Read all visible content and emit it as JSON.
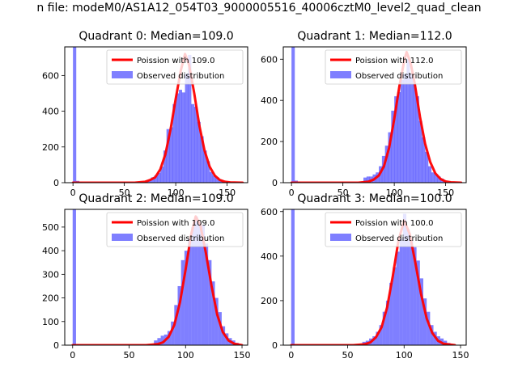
{
  "figure": {
    "suptitle": "n file: modeM0/AS1A12_054T03_9000005516_40006cztM0_level2_quad_clean"
  },
  "chart_data": [
    {
      "type": "bar",
      "title": "Quadrant 0: Median=109.0",
      "xlabel": "",
      "ylabel": "",
      "xlim": [
        -8,
        170
      ],
      "ylim": [
        0,
        760
      ],
      "xticks": [
        0,
        50,
        100,
        150
      ],
      "yticks": [
        0,
        200,
        400,
        600
      ],
      "legend_position": "upper right",
      "legend": [
        "Poission with 109.0",
        "Observed distribution"
      ],
      "series": [
        {
          "name": "Observed distribution",
          "color": "#0000ff",
          "alpha": 0.5,
          "bin_width": 3.2,
          "x": [
            0,
            3,
            6,
            9,
            12,
            15,
            70,
            73,
            76,
            79,
            82,
            85,
            88,
            91,
            94,
            97,
            100,
            103,
            106,
            109,
            112,
            115,
            118,
            121,
            124,
            127,
            130,
            133,
            136,
            139,
            142,
            145,
            148
          ],
          "values": [
            760,
            10,
            5,
            3,
            3,
            2,
            8,
            15,
            30,
            40,
            55,
            90,
            180,
            300,
            310,
            440,
            500,
            520,
            505,
            610,
            715,
            440,
            425,
            340,
            260,
            180,
            120,
            60,
            40,
            30,
            15,
            8,
            5
          ]
        },
        {
          "name": "Poission with 109.0",
          "color": "#ff0000",
          "line": true,
          "x": [
            0,
            60,
            70,
            75,
            80,
            85,
            90,
            95,
            100,
            105,
            109,
            113,
            118,
            123,
            128,
            133,
            138,
            143,
            148,
            153,
            165
          ],
          "values": [
            0,
            0,
            5,
            15,
            30,
            75,
            160,
            300,
            470,
            630,
            720,
            660,
            500,
            320,
            180,
            90,
            40,
            15,
            5,
            2,
            0
          ]
        }
      ]
    },
    {
      "type": "bar",
      "title": "Quadrant 1: Median=112.0",
      "xlabel": "",
      "ylabel": "",
      "xlim": [
        -8,
        170
      ],
      "ylim": [
        0,
        660
      ],
      "xticks": [
        0,
        50,
        100,
        150
      ],
      "yticks": [
        0,
        200,
        400,
        600
      ],
      "legend_position": "upper right",
      "legend": [
        "Poission with 112.0",
        "Observed distribution"
      ],
      "series": [
        {
          "name": "Observed distribution",
          "color": "#0000ff",
          "alpha": 0.5,
          "bin_width": 3.2,
          "x": [
            0,
            3,
            6,
            9,
            12,
            15,
            70,
            73,
            76,
            79,
            82,
            85,
            88,
            91,
            94,
            97,
            100,
            103,
            106,
            109,
            112,
            115,
            118,
            121,
            124,
            127,
            130,
            133,
            136,
            139,
            142,
            145,
            148
          ],
          "values": [
            660,
            10,
            5,
            3,
            3,
            2,
            25,
            30,
            30,
            40,
            50,
            80,
            130,
            180,
            245,
            350,
            420,
            440,
            500,
            530,
            600,
            530,
            480,
            420,
            300,
            220,
            150,
            80,
            50,
            40,
            30,
            20,
            10
          ]
        },
        {
          "name": "Poission with 112.0",
          "color": "#ff0000",
          "line": true,
          "x": [
            0,
            65,
            75,
            80,
            85,
            90,
            95,
            100,
            105,
            110,
            112,
            116,
            120,
            125,
            130,
            135,
            140,
            145,
            150,
            155,
            165
          ],
          "values": [
            0,
            0,
            5,
            15,
            35,
            80,
            170,
            310,
            470,
            600,
            635,
            580,
            480,
            320,
            190,
            100,
            45,
            18,
            6,
            2,
            0
          ]
        }
      ]
    },
    {
      "type": "bar",
      "title": "Quadrant 2: Median=109.0",
      "xlabel": "",
      "ylabel": "",
      "xlim": [
        -7,
        155
      ],
      "ylim": [
        0,
        575
      ],
      "xticks": [
        0,
        50,
        100,
        150
      ],
      "yticks": [
        0,
        100,
        200,
        300,
        400,
        500
      ],
      "legend_position": "upper right",
      "legend": [
        "Poission with 109.0",
        "Observed distribution"
      ],
      "series": [
        {
          "name": "Observed distribution",
          "color": "#0000ff",
          "alpha": 0.5,
          "bin_width": 3.0,
          "x": [
            0,
            3,
            6,
            9,
            72,
            75,
            78,
            81,
            84,
            87,
            90,
            93,
            96,
            99,
            102,
            105,
            108,
            111,
            114,
            117,
            120,
            123,
            126,
            129,
            132,
            135,
            138,
            141,
            144
          ],
          "values": [
            575,
            4,
            3,
            2,
            20,
            30,
            40,
            45,
            60,
            100,
            170,
            250,
            360,
            400,
            450,
            500,
            545,
            520,
            510,
            430,
            360,
            270,
            200,
            140,
            80,
            50,
            30,
            20,
            10
          ]
        },
        {
          "name": "Poission with 109.0",
          "color": "#ff0000",
          "line": true,
          "x": [
            0,
            65,
            75,
            80,
            85,
            90,
            95,
            100,
            105,
            109,
            113,
            118,
            123,
            128,
            133,
            138,
            143,
            150
          ],
          "values": [
            0,
            0,
            4,
            12,
            35,
            85,
            180,
            320,
            470,
            545,
            510,
            390,
            250,
            130,
            55,
            20,
            6,
            0
          ]
        }
      ]
    },
    {
      "type": "bar",
      "title": "Quadrant 3: Median=100.0",
      "xlabel": "",
      "ylabel": "",
      "xlim": [
        -7,
        155
      ],
      "ylim": [
        0,
        610
      ],
      "xticks": [
        0,
        50,
        100,
        150
      ],
      "yticks": [
        0,
        200,
        400,
        600
      ],
      "legend_position": "upper right",
      "legend": [
        "Poission with 100.0",
        "Observed distribution"
      ],
      "series": [
        {
          "name": "Observed distribution",
          "color": "#0000ff",
          "alpha": 0.5,
          "bin_width": 3.0,
          "x": [
            0,
            3,
            6,
            9,
            63,
            66,
            69,
            72,
            75,
            78,
            81,
            84,
            87,
            90,
            93,
            96,
            99,
            102,
            105,
            108,
            111,
            114,
            117,
            120,
            123,
            126,
            129,
            132,
            135,
            138
          ],
          "values": [
            610,
            4,
            3,
            2,
            15,
            20,
            30,
            40,
            60,
            90,
            150,
            200,
            280,
            350,
            420,
            480,
            590,
            520,
            470,
            440,
            380,
            300,
            210,
            150,
            90,
            60,
            40,
            30,
            20,
            10
          ]
        },
        {
          "name": "Poission with 100.0",
          "color": "#ff0000",
          "line": true,
          "x": [
            0,
            55,
            65,
            70,
            75,
            80,
            85,
            90,
            95,
            100,
            105,
            110,
            115,
            120,
            125,
            130,
            135,
            145
          ],
          "values": [
            0,
            0,
            4,
            12,
            35,
            80,
            170,
            310,
            470,
            560,
            500,
            370,
            230,
            120,
            55,
            20,
            6,
            0
          ]
        }
      ]
    }
  ]
}
